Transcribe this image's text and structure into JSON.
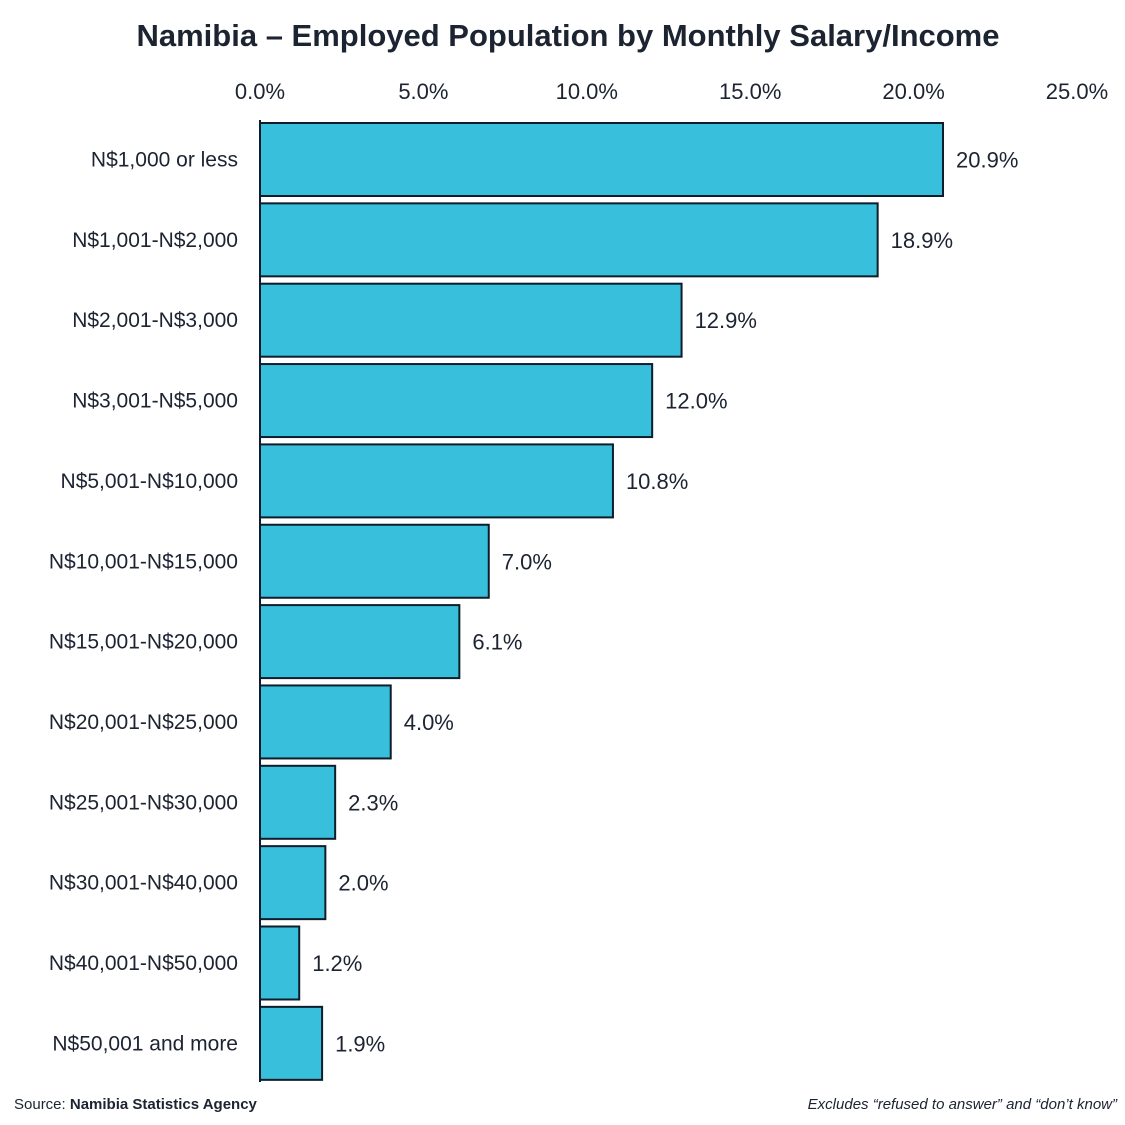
{
  "chart_data": {
    "type": "bar",
    "orientation": "horizontal",
    "title": "Namibia – Employed Population by Monthly Salary/Income",
    "xlim": [
      0,
      25
    ],
    "x_ticks": [
      "0.0%",
      "5.0%",
      "10.0%",
      "15.0%",
      "20.0%",
      "25.0%"
    ],
    "x_axis_position": "top",
    "grid": false,
    "categories": [
      "N$1,000 or less",
      "N$1,001-N$2,000",
      "N$2,001-N$3,000",
      "N$3,001-N$5,000",
      "N$5,001-N$10,000",
      "N$10,001-N$15,000",
      "N$15,001-N$20,000",
      "N$20,001-N$25,000",
      "N$25,001-N$30,000",
      "N$30,001-N$40,000",
      "N$40,001-N$50,000",
      "N$50,001 and more"
    ],
    "values": [
      20.9,
      18.9,
      12.9,
      12.0,
      10.8,
      7.0,
      6.1,
      4.0,
      2.3,
      2.0,
      1.2,
      1.9
    ],
    "value_labels": [
      "20.9%",
      "18.9%",
      "12.9%",
      "12.0%",
      "10.8%",
      "7.0%",
      "6.1%",
      "4.0%",
      "2.3%",
      "2.0%",
      "1.2%",
      "1.9%"
    ],
    "bar_color": "#38bfdc",
    "outline_color": "#0e1d2a"
  },
  "footer": {
    "source_label": "Source:",
    "source_name": "Namibia Statistics Agency",
    "note": "Excludes “refused to answer” and “don’t know”"
  }
}
